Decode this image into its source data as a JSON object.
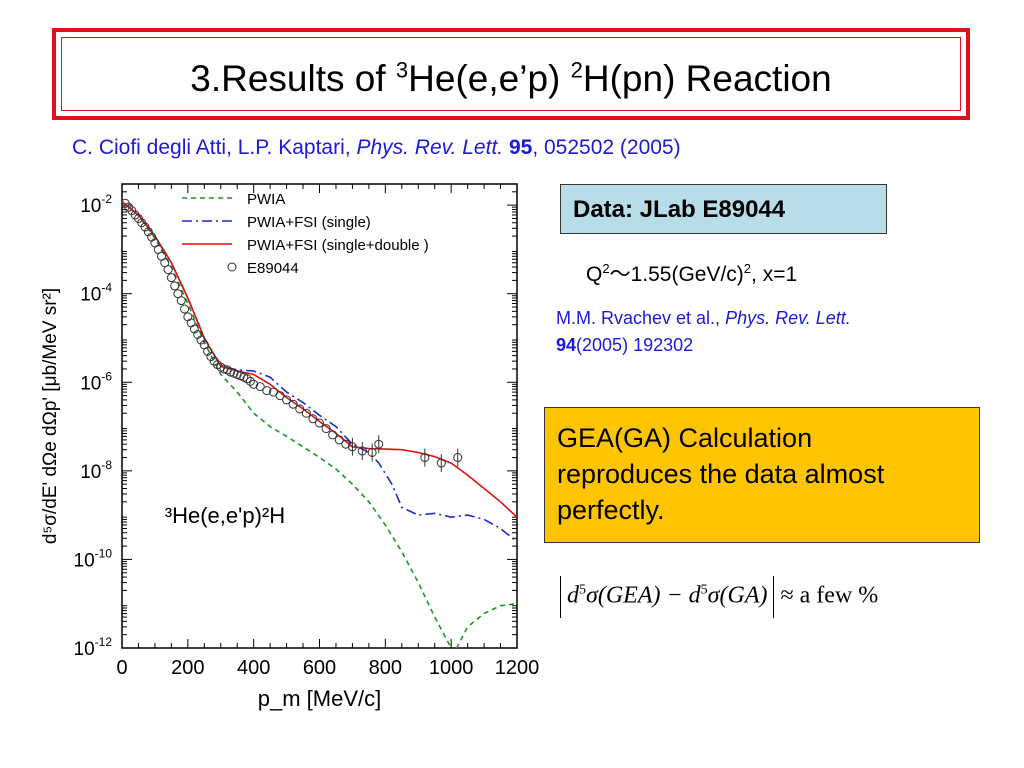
{
  "slide": {
    "title_prefix": "3.Results of ",
    "title_sup1": "3",
    "title_mid": "He(e,e’p) ",
    "title_sup2": "2",
    "title_suffix": "H(pn) Reaction",
    "citation": {
      "authors": "C. Ciofi degli Atti, L.P. Kaptari, ",
      "journal": "Phys. Rev. Lett.",
      "volume": "95",
      "rest": ", 052502 (2005)"
    },
    "data_label": "Data: JLab E89044",
    "kinematics": {
      "q": "Q",
      "q_sup": "2",
      "q_rest": "～1.55(GeV/c)",
      "unit_sup": "2",
      "tail": ", x=1"
    },
    "ref2": {
      "authors": "M.M. Rvachev  et al., ",
      "journal": "Phys. Rev. Lett.",
      "volume": "94",
      "rest": "(2005) 192302"
    },
    "gea_text": [
      "GEA(GA) Calculation",
      "reproduces the data almost",
      "perfectly."
    ],
    "formula": {
      "d": "d",
      "exp": "5",
      "left": "σ(GEA) − ",
      "right": "σ(GA)",
      "tail": "≈ a few %"
    }
  },
  "chart_data": {
    "type": "line",
    "xlabel": "p_m [MeV/c]",
    "ylabel": "d⁵σ/dE' dΩe dΩp' [μb/MeV sr²]",
    "xlim": [
      0,
      1200
    ],
    "ylim": [
      1e-12,
      0.03
    ],
    "yscale": "log",
    "x_ticks": [
      0,
      200,
      400,
      600,
      800,
      1000,
      1200
    ],
    "y_ticks": [
      {
        "value": 0.01,
        "base": "10",
        "exp": "-2"
      },
      {
        "value": 0.0001,
        "base": "10",
        "exp": "-4"
      },
      {
        "value": 1e-06,
        "base": "10",
        "exp": "-6"
      },
      {
        "value": 1e-08,
        "base": "10",
        "exp": "-8"
      },
      {
        "value": 1e-10,
        "base": "10",
        "exp": "-10"
      },
      {
        "value": 1e-12,
        "base": "10",
        "exp": "-12"
      }
    ],
    "annotation": "³He(e,e'p)²H",
    "legend_position": "top-right",
    "series": [
      {
        "name": "PWIA",
        "color": "#1a9a1a",
        "dash": "5,4",
        "x": [
          0,
          50,
          100,
          150,
          200,
          250,
          300,
          350,
          400,
          450,
          500,
          550,
          600,
          650,
          700,
          750,
          800,
          850,
          900,
          950,
          1000,
          1010,
          1050,
          1100,
          1150,
          1200
        ],
        "y": [
          0.012,
          0.0058,
          0.0018,
          0.0004,
          6e-05,
          8e-06,
          1.5e-06,
          6e-07,
          2e-07,
          1e-07,
          6e-08,
          3.5e-08,
          2e-08,
          1.1e-08,
          5e-09,
          2e-09,
          6e-10,
          1.5e-10,
          3e-11,
          5e-12,
          1e-12,
          8e-13,
          3e-12,
          6e-12,
          9e-12,
          1e-11
        ]
      },
      {
        "name": "PWIA+FSI (single)",
        "color": "#1a2ad8",
        "dash": "10,4,2,4",
        "x": [
          0,
          50,
          100,
          150,
          200,
          250,
          300,
          350,
          400,
          450,
          500,
          550,
          600,
          650,
          700,
          750,
          780,
          820,
          850,
          900,
          950,
          1000,
          1050,
          1100,
          1150,
          1200
        ],
        "y": [
          0.012,
          0.006,
          0.002,
          0.0005,
          8e-05,
          1e-05,
          2.3e-06,
          1.9e-06,
          1.8e-06,
          1.3e-06,
          6e-07,
          3.5e-07,
          1.8e-07,
          1e-07,
          4e-08,
          2.6e-08,
          1.5e-08,
          5e-09,
          1.5e-09,
          1e-09,
          1.1e-09,
          9e-10,
          1e-09,
          8e-10,
          5e-10,
          2.5e-10
        ]
      },
      {
        "name": "PWIA+FSI (single+double )",
        "color": "#e01010",
        "dash": "",
        "x": [
          0,
          50,
          100,
          150,
          200,
          250,
          300,
          350,
          400,
          450,
          500,
          550,
          600,
          650,
          700,
          750,
          800,
          850,
          900,
          950,
          1000,
          1050,
          1100,
          1150,
          1200
        ],
        "y": [
          0.012,
          0.006,
          0.002,
          0.0005,
          8e-05,
          1e-05,
          2.3e-06,
          1.8e-06,
          1.5e-06,
          9e-07,
          4.5e-07,
          2.5e-07,
          1.3e-07,
          7e-08,
          3.5e-08,
          3.2e-08,
          3.1e-08,
          3e-08,
          2.6e-08,
          2.1e-08,
          1.5e-08,
          8e-09,
          4e-09,
          2e-09,
          9e-10
        ]
      },
      {
        "name": "E89044",
        "color": "#333333",
        "marker": "open-circle",
        "x": [
          10,
          20,
          30,
          40,
          50,
          60,
          70,
          80,
          90,
          100,
          110,
          120,
          130,
          140,
          150,
          160,
          170,
          180,
          190,
          200,
          210,
          220,
          230,
          240,
          250,
          260,
          270,
          280,
          290,
          300,
          310,
          320,
          330,
          340,
          350,
          360,
          370,
          380,
          390,
          400,
          420,
          440,
          460,
          480,
          500,
          520,
          540,
          560,
          580,
          600,
          620,
          640,
          660,
          680,
          700,
          730,
          760,
          780,
          920,
          970,
          1020
        ],
        "y": [
          0.011,
          0.009,
          0.0075,
          0.006,
          0.005,
          0.004,
          0.0032,
          0.0025,
          0.0019,
          0.0014,
          0.001,
          0.0007,
          0.0005,
          0.00035,
          0.00023,
          0.00015,
          0.0001,
          7e-05,
          4.5e-05,
          3e-05,
          2.2e-05,
          1.6e-05,
          1.2e-05,
          9e-06,
          7e-06,
          5e-06,
          3.8e-06,
          3e-06,
          2.5e-06,
          2.2e-06,
          2e-06,
          1.9e-06,
          1.7e-06,
          1.6e-06,
          1.5e-06,
          1.4e-06,
          1.3e-06,
          1.2e-06,
          1.05e-06,
          9e-07,
          8e-07,
          6.5e-07,
          6e-07,
          5e-07,
          4e-07,
          3.2e-07,
          2.5e-07,
          2e-07,
          1.5e-07,
          1.2e-07,
          9e-08,
          6.5e-08,
          5e-08,
          4e-08,
          3.5e-08,
          2.8e-08,
          2.6e-08,
          4e-08,
          2e-08,
          1.5e-08,
          2e-08
        ]
      }
    ]
  }
}
